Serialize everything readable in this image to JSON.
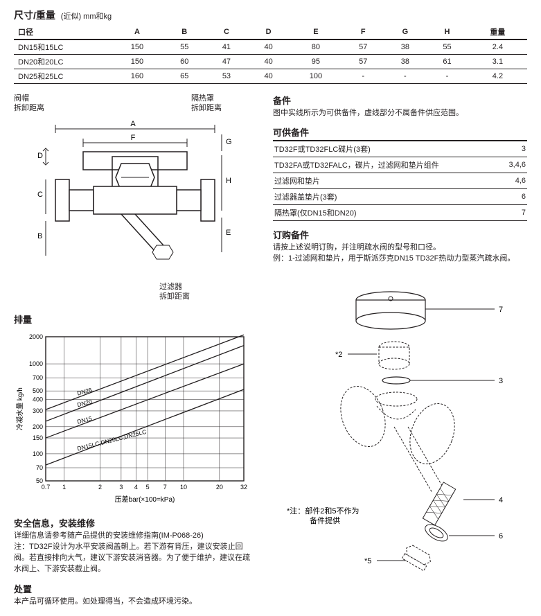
{
  "header": {
    "title": "尺寸/重量",
    "subtitle": "(近似) mm和kg"
  },
  "dimTable": {
    "headers": [
      "口径",
      "A",
      "B",
      "C",
      "D",
      "E",
      "F",
      "G",
      "H",
      "重量"
    ],
    "rows": [
      [
        "DN15和15LC",
        "150",
        "55",
        "41",
        "40",
        "80",
        "57",
        "38",
        "55",
        "2.4"
      ],
      [
        "DN20和20LC",
        "150",
        "60",
        "47",
        "40",
        "95",
        "57",
        "38",
        "61",
        "3.1"
      ],
      [
        "DN25和25LC",
        "160",
        "65",
        "53",
        "40",
        "100",
        "-",
        "-",
        "-",
        "4.2"
      ]
    ]
  },
  "diagramLabels": {
    "capRemoval": "阀帽\n拆卸距离",
    "shieldRemoval": "隔热罩\n拆卸距离",
    "strainerRemoval": "过滤器\n拆卸距离",
    "A": "A",
    "B": "B",
    "C": "C",
    "D": "D",
    "E": "E",
    "F": "F",
    "G": "G",
    "H": "H"
  },
  "capacity": {
    "title": "排量",
    "yLabel": "冷凝水量 kg/h",
    "xLabel": "压差bar(×100=kPa)",
    "xTicks": [
      "0.7",
      "1",
      "2",
      "3",
      "4",
      "5",
      "7",
      "10",
      "20",
      "32"
    ],
    "yTicks": [
      "50",
      "70",
      "100",
      "150",
      "200",
      "300",
      "400",
      "500",
      "700",
      "1000",
      "2000"
    ],
    "lines": [
      "DN25",
      "DN20",
      "DN15",
      "DN15LC,DN20LC,DN25LC"
    ],
    "grid_color": "#231f20",
    "line_color": "#231f20",
    "line_width": 1.2
  },
  "safety": {
    "title": "安全信息，安装维修",
    "body": "详细信息请参考随产品提供的安装维修指南(IM-P068-26)\n注：TD32F设计为水平安装阀盖朝上。若下游有背压，建议安装止回阀。若直接排向大气，建议下游安装消音器。为了便于维护，建议在疏水阀上、下游安装截止阀。"
  },
  "disposal": {
    "title": "处置",
    "body": "本产品可循环使用。如处理得当，不会造成环境污染。"
  },
  "spares": {
    "title": "备件",
    "intro": "图中实线所示为可供备件，虚线部分不属备件供应范围。",
    "available_title": "可供备件",
    "rows": [
      [
        "TD32F或TD32FLC碟片(3套)",
        "3"
      ],
      [
        "TD32FA或TD32FALC，碟片，过滤网和垫片组件",
        "3,4,6"
      ],
      [
        "过滤网和垫片",
        "4,6"
      ],
      [
        "过滤器盖垫片(3套)",
        "6"
      ],
      [
        "隔热罩(仅DN15和DN20)",
        "7"
      ]
    ],
    "order_title": "订购备件",
    "order_body": "请按上述说明订购，并注明疏水阀的型号和口径。\n例：1-过滤网和垫片，用于斯派莎克DN15 TD32F热动力型蒸汽疏水阀。",
    "callouts": {
      "c2": "*2",
      "c3": "3",
      "c4": "4",
      "c5": "*5",
      "c6": "6",
      "c7": "7"
    },
    "note": "*注：部件2和5不作为\n　　　备件提供"
  }
}
